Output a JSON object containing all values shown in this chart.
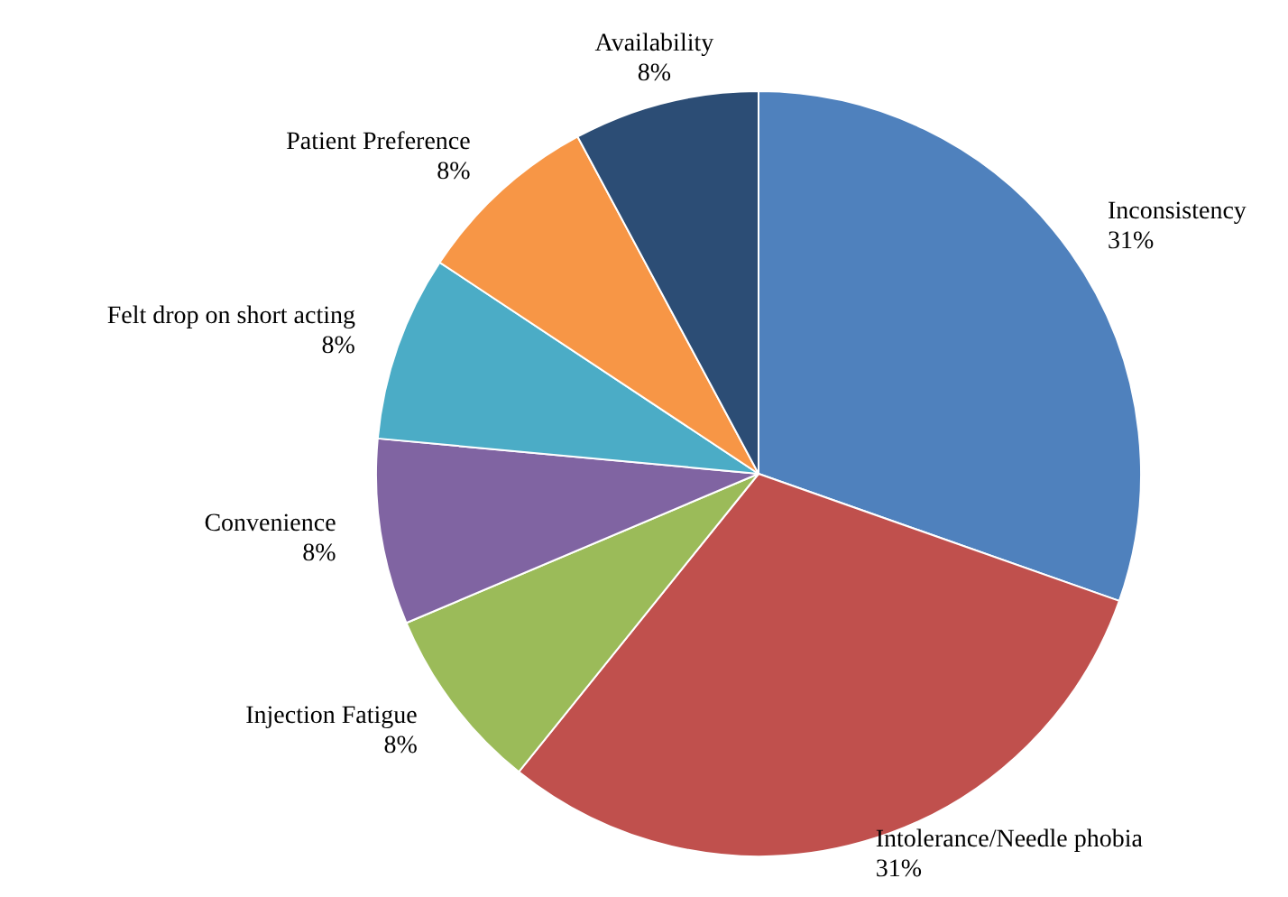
{
  "chart_data": {
    "type": "pie",
    "categories": [
      "Inconsistency",
      "Intolerance/Needle phobia",
      "Injection Fatigue",
      "Convenience",
      "Felt drop on short acting",
      "Patient Preference",
      "Availability"
    ],
    "values": [
      31,
      31,
      8,
      8,
      8,
      8,
      8
    ],
    "value_labels": [
      "31%",
      "31%",
      "8%",
      "8%",
      "8%",
      "8%",
      "8%"
    ],
    "colors": [
      "#4f81bd",
      "#c0504d",
      "#9bbb59",
      "#8064a2",
      "#4bacc6",
      "#f79646",
      "#2c4d75"
    ],
    "legend": false
  }
}
